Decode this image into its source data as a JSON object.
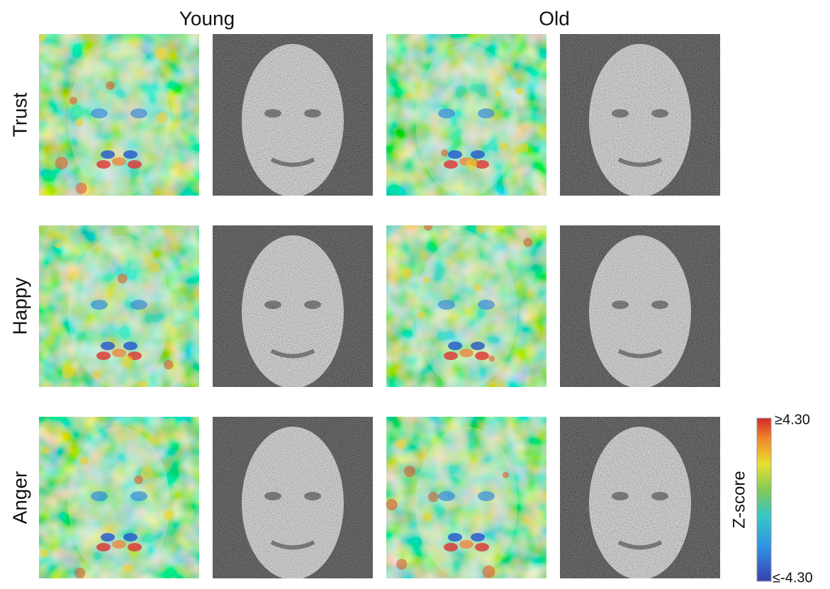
{
  "columns": [
    "Young",
    "Old"
  ],
  "rows": [
    "Trust",
    "Happy",
    "Anger"
  ],
  "colorbar": {
    "label": "Z-score",
    "max_label": "≥4.30",
    "min_label": "≤-4.30"
  }
}
